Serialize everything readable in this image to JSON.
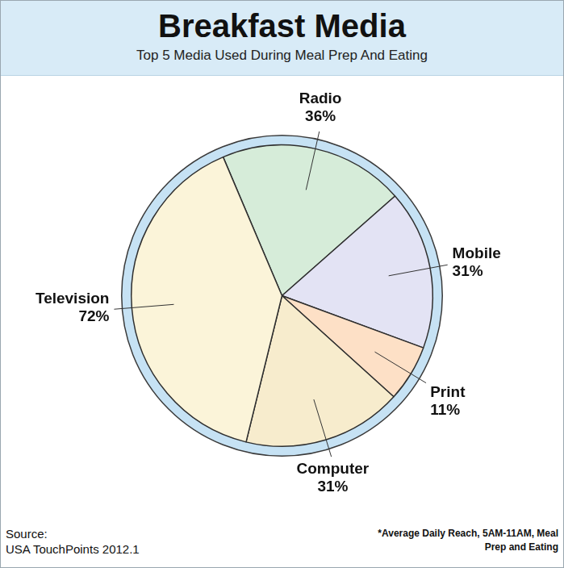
{
  "chart_data": {
    "type": "pie",
    "title": "Breakfast Media",
    "subtitle": "Top 5 Media Used During Meal Prep And Eating",
    "categories": [
      "Radio",
      "Mobile",
      "Print",
      "Computer",
      "Television"
    ],
    "values": [
      36,
      31,
      11,
      31,
      72
    ],
    "value_labels": [
      "36%",
      "31%",
      "11%",
      "31%",
      "72%"
    ],
    "colors": [
      "#d6ecd9",
      "#e3e3f4",
      "#fde0c6",
      "#f7eccd",
      "#fbf4d9"
    ],
    "data_labels": true,
    "annotations": [
      "Source:",
      "USA TouchPoints 2012.1",
      "*Average Daily Reach, 5AM-11AM, Meal Prep and Eating"
    ]
  }
}
